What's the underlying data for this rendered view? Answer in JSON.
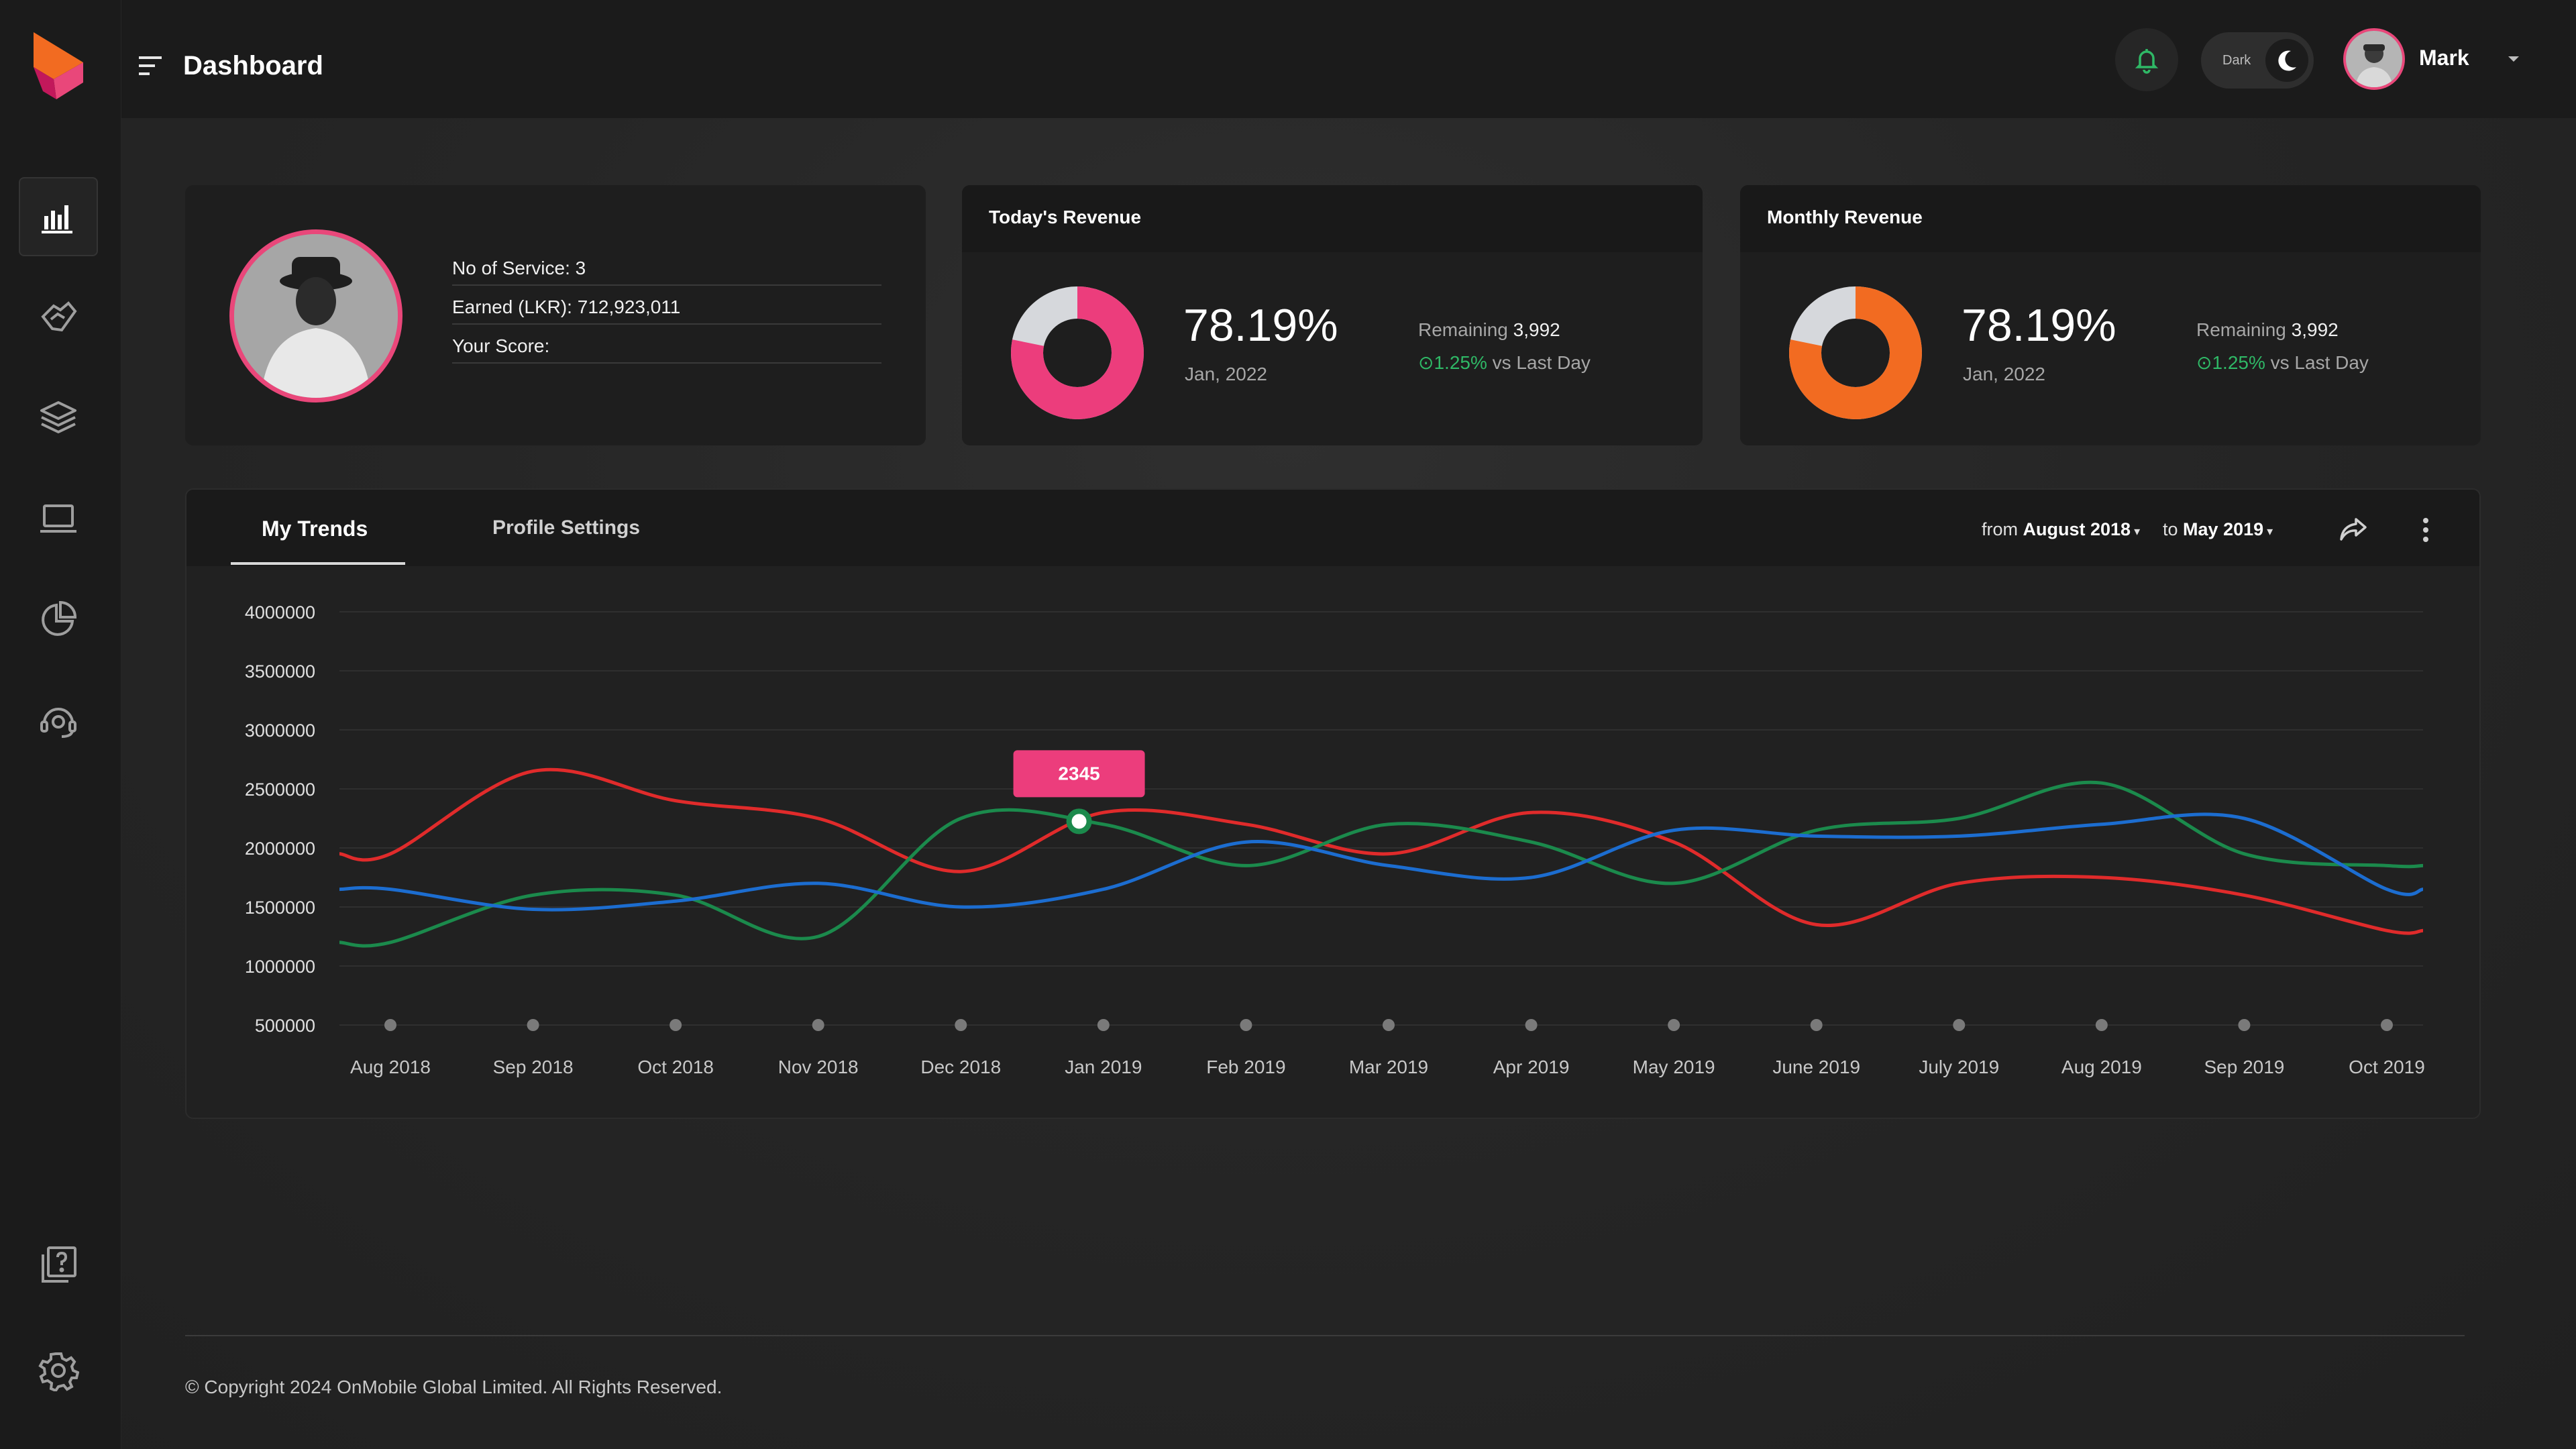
{
  "header": {
    "title": "Dashboard",
    "theme_label": "Dark",
    "user_name": "Mark"
  },
  "sidebar": {
    "items": [
      {
        "icon": "bar-chart-icon",
        "active": true
      },
      {
        "icon": "handshake-icon",
        "active": false
      },
      {
        "icon": "layers-icon",
        "active": false
      },
      {
        "icon": "laptop-icon",
        "active": false
      },
      {
        "icon": "pie-chart-icon",
        "active": false
      },
      {
        "icon": "support-agent-icon",
        "active": false
      },
      {
        "icon": "help-book-icon",
        "active": false
      },
      {
        "icon": "gear-icon",
        "active": false
      }
    ]
  },
  "profile": {
    "services": "No of Service: 3",
    "earned": "Earned (LKR): 712,923,011",
    "score": "Your Score:"
  },
  "todays_revenue": {
    "title": "Today's Revenue",
    "percent": "78.19%",
    "fraction": 0.7819,
    "date": "Jan, 2022",
    "remaining_label": "Remaining",
    "remaining_value": "3,992",
    "change": "1.25%",
    "change_suffix": "vs Last Day",
    "color": "#ec3d7c"
  },
  "monthly_revenue": {
    "title": "Monthly Revenue",
    "percent": "78.19%",
    "fraction": 0.7819,
    "date": "Jan, 2022",
    "remaining_label": "Remaining",
    "remaining_value": "3,992",
    "change": "1.25%",
    "change_suffix": "vs Last Day",
    "color": "#f26b21"
  },
  "trends": {
    "tabs": [
      "My Trends",
      "Profile Settings"
    ],
    "range_from_label": "from",
    "range_from_value": "August 2018",
    "range_to_label": "to",
    "range_to_value": "May 2019"
  },
  "chart_data": {
    "type": "line",
    "categories": [
      "Aug 2018",
      "Sep 2018",
      "Oct 2018",
      "Nov 2018",
      "Dec 2018",
      "Jan 2019",
      "Feb 2019",
      "Mar 2019",
      "Apr 2019",
      "May 2019",
      "June 2019",
      "July 2019",
      "Aug 2019",
      "Sep 2019",
      "Oct 2019"
    ],
    "y_ticks": [
      4000000,
      3500000,
      3000000,
      2500000,
      2000000,
      1500000,
      1000000,
      500000
    ],
    "ylim": [
      500000,
      4000000
    ],
    "grid": true,
    "tooltip": {
      "label": "2345",
      "series_index": 1,
      "x_index": 4.5
    },
    "series": [
      {
        "color": "#e02b2b",
        "values": [
          1950000,
          2650000,
          2400000,
          2250000,
          1800000,
          2300000,
          2200000,
          1950000,
          2300000,
          2050000,
          1350000,
          1700000,
          1750000,
          1600000,
          1300000
        ]
      },
      {
        "color": "#1b8a4c",
        "values": [
          1200000,
          1600000,
          1600000,
          1250000,
          2250000,
          2200000,
          1850000,
          2200000,
          2050000,
          1700000,
          2150000,
          2250000,
          2550000,
          1950000,
          1850000
        ]
      },
      {
        "color": "#1c6dd0",
        "values": [
          1650000,
          1480000,
          1550000,
          1700000,
          1500000,
          1650000,
          2050000,
          1850000,
          1750000,
          2150000,
          2100000,
          2100000,
          2200000,
          2250000,
          1650000
        ]
      }
    ]
  },
  "footer": {
    "copyright": "© Copyright 2024 OnMobile Global Limited. All Rights Reserved."
  }
}
